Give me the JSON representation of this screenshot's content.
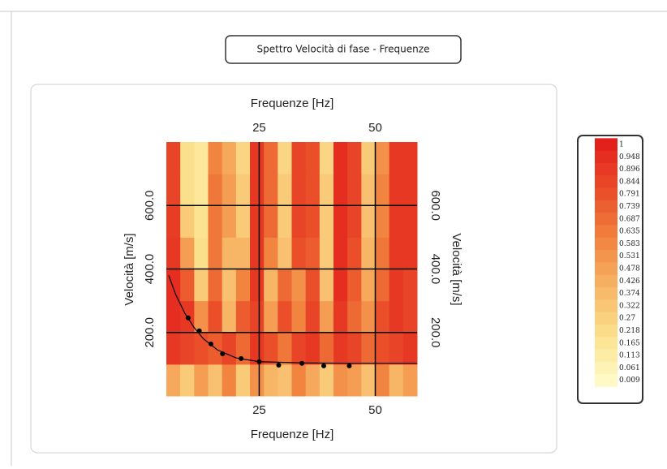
{
  "chart_data": {
    "type": "heatmap",
    "title": "Spettro Velocità di fase - Frequenze",
    "xlabel": "Frequenze [Hz]",
    "ylabel": "Velocità [m/s]",
    "xlim": [
      5,
      59
    ],
    "ylim": [
      0,
      800
    ],
    "xticks": [
      25,
      50
    ],
    "yticks": [
      {
        "value": 200,
        "label": "200.0"
      },
      {
        "value": 400,
        "label": "400.0"
      },
      {
        "value": 600,
        "label": "600.0"
      }
    ],
    "grid": true,
    "x": [
      6.5,
      9.5,
      12.5,
      15.5,
      18.5,
      21.5,
      24.5,
      27.5,
      30.5,
      33.5,
      36.5,
      39.5,
      42.5,
      45.5,
      48.5,
      51.5,
      54.5,
      57.5
    ],
    "y": [
      50,
      150,
      250,
      350,
      450,
      550,
      650,
      750
    ],
    "z": [
      [
        0.45,
        0.3,
        0.5,
        0.35,
        0.6,
        0.3,
        0.55,
        0.4,
        0.35,
        0.6,
        0.45,
        0.3,
        0.55,
        0.5,
        0.35,
        0.6,
        0.4,
        0.5
      ],
      [
        0.9,
        0.85,
        0.8,
        0.75,
        0.85,
        0.7,
        0.9,
        0.8,
        0.65,
        0.85,
        0.9,
        0.7,
        0.9,
        0.85,
        0.7,
        0.8,
        0.85,
        0.9
      ],
      [
        0.95,
        0.9,
        0.55,
        0.8,
        0.4,
        0.75,
        0.85,
        0.5,
        0.8,
        0.6,
        0.85,
        0.5,
        0.9,
        0.7,
        0.55,
        0.8,
        0.9,
        0.85
      ],
      [
        0.95,
        0.75,
        0.3,
        0.7,
        0.35,
        0.6,
        0.9,
        0.4,
        0.7,
        0.55,
        0.8,
        0.35,
        0.95,
        0.75,
        0.45,
        0.7,
        0.9,
        0.85
      ],
      [
        0.9,
        0.5,
        0.2,
        0.65,
        0.4,
        0.4,
        0.9,
        0.6,
        0.35,
        0.8,
        0.75,
        0.3,
        0.95,
        0.8,
        0.4,
        0.65,
        0.9,
        0.9
      ],
      [
        0.88,
        0.3,
        0.18,
        0.65,
        0.5,
        0.3,
        0.9,
        0.7,
        0.3,
        0.85,
        0.8,
        0.3,
        0.95,
        0.85,
        0.35,
        0.6,
        0.9,
        0.9
      ],
      [
        0.85,
        0.2,
        0.15,
        0.65,
        0.5,
        0.3,
        0.9,
        0.7,
        0.3,
        0.85,
        0.8,
        0.3,
        0.95,
        0.85,
        0.35,
        0.6,
        0.9,
        0.9
      ],
      [
        0.85,
        0.2,
        0.15,
        0.6,
        0.45,
        0.25,
        0.9,
        0.7,
        0.25,
        0.85,
        0.8,
        0.25,
        0.95,
        0.85,
        0.3,
        0.55,
        0.9,
        0.9
      ]
    ],
    "colorscale": [
      "#fffbc8",
      "#fbe08c",
      "#f7b566",
      "#f1843f",
      "#ea4f2a",
      "#e3211c"
    ],
    "colorbar": {
      "levels": [
        1,
        0.948,
        0.896,
        0.844,
        0.791,
        0.739,
        0.687,
        0.635,
        0.583,
        0.531,
        0.478,
        0.426,
        0.374,
        0.322,
        0.27,
        0.218,
        0.165,
        0.113,
        0.061,
        0.009
      ]
    },
    "curve": {
      "color": "#000000",
      "x": [
        5.5,
        7,
        9,
        11,
        13,
        16,
        20,
        25,
        35,
        45,
        59
      ],
      "values": [
        380,
        320,
        260,
        215,
        180,
        145,
        120,
        108,
        104,
        103,
        103
      ]
    },
    "picks": {
      "color": "#000000",
      "x": [
        9.7,
        12.1,
        14.6,
        17.1,
        21.1,
        25,
        29.2,
        34.2,
        38.9,
        44.4
      ],
      "values": [
        246,
        205,
        164,
        133,
        118,
        108,
        97,
        103,
        95,
        95
      ]
    }
  }
}
